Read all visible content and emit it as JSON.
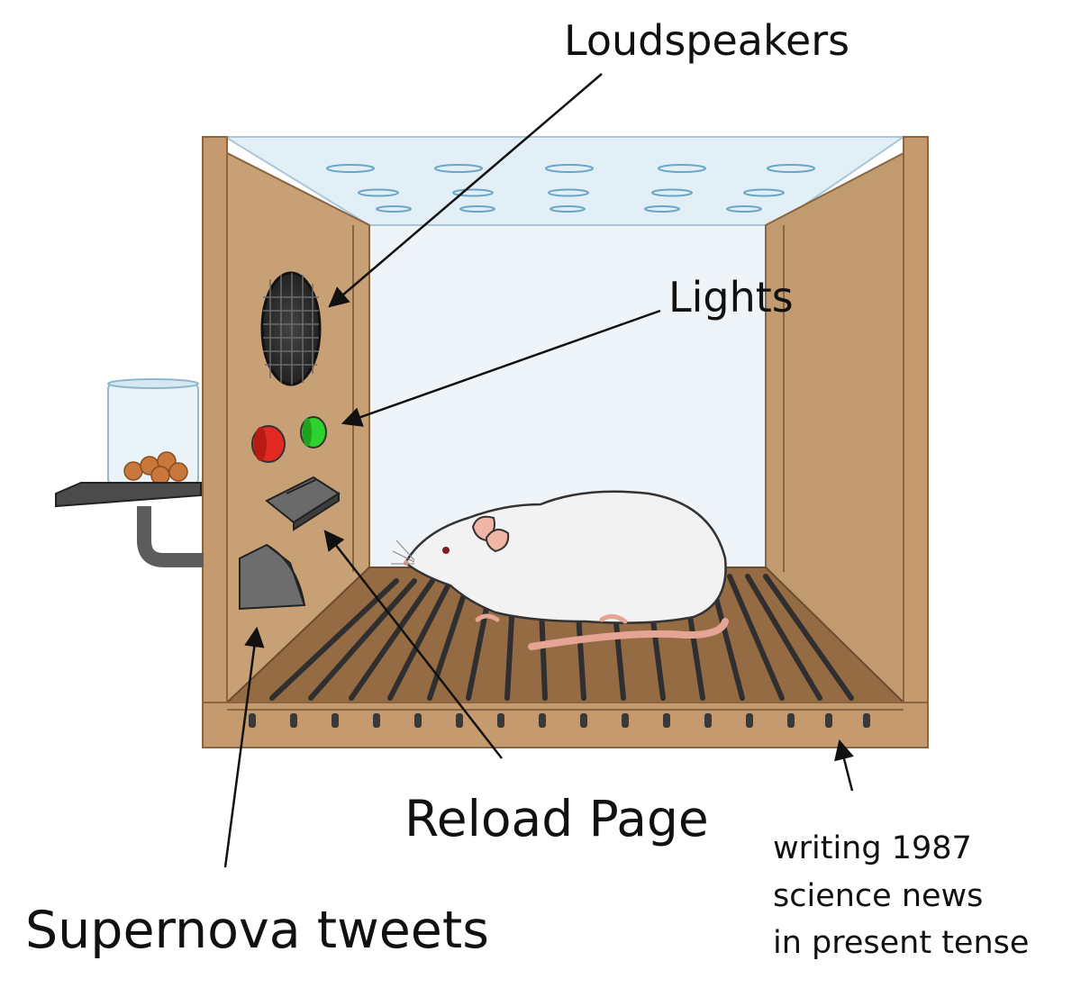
{
  "labels": {
    "loudspeakers": "Loudspeakers",
    "lights": "Lights",
    "reload": "Reload Page",
    "supernova": "Supernova tweets",
    "note": [
      "writing 1987",
      "science news",
      "in present tense"
    ]
  },
  "colors": {
    "wood": "#c49a6e",
    "wood_dark": "#8a6541",
    "floor": "#946b43",
    "glass": "#e7f2f8",
    "back_wall": "#eef4f8",
    "metal": "#5a5a5a",
    "red_light": "#e12b22",
    "green_light": "#2fd12c",
    "rat": "#f2f2f2",
    "pellet": "#c9773a"
  },
  "icons": [
    "speaker-grille-icon",
    "red-light-icon",
    "green-light-icon",
    "lever-icon",
    "food-tray-icon",
    "pellet-jar-icon",
    "rat-icon",
    "grid-floor-icon"
  ]
}
